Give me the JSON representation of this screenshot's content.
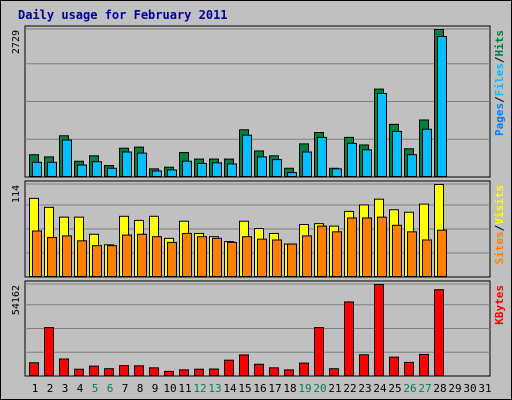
{
  "chart_data": {
    "type": "bar",
    "title": "Daily usage for February 2011",
    "days": [
      "1",
      "2",
      "3",
      "4",
      "5",
      "6",
      "7",
      "8",
      "9",
      "10",
      "11",
      "12",
      "13",
      "14",
      "15",
      "16",
      "17",
      "18",
      "19",
      "20",
      "21",
      "22",
      "23",
      "24",
      "25",
      "26",
      "27",
      "28",
      "29",
      "30",
      "31"
    ],
    "weekend_days": [
      "5",
      "6",
      "12",
      "13",
      "19",
      "20",
      "26",
      "27"
    ],
    "panels": [
      {
        "id": "hits_panel",
        "max_label": "2729",
        "ymax": 2729,
        "right_labels": [
          "Pages",
          "Files",
          "Hits"
        ],
        "series": [
          {
            "name": "Hits",
            "color": "#008040",
            "values": [
              420,
              380,
              770,
              300,
              400,
              220,
              540,
              560,
              160,
              190,
              460,
              340,
              340,
              340,
              880,
              490,
              400,
              170,
              620,
              830,
              170,
              740,
              600,
              1630,
              980,
              530,
              1060,
              2729,
              0,
              0,
              0
            ]
          },
          {
            "name": "Files",
            "color": "#00c0ff",
            "values": [
              280,
              280,
              690,
              230,
              290,
              170,
              470,
              450,
              120,
              140,
              300,
              260,
              270,
              250,
              780,
              380,
              330,
              90,
              470,
              740,
              160,
              630,
              510,
              1550,
              850,
              420,
              890,
              2600,
              0,
              0,
              0
            ]
          },
          {
            "name": "Pages",
            "color": "#0080ff",
            "values": []
          }
        ]
      },
      {
        "id": "visits_panel",
        "max_label": "114",
        "ymax": 114,
        "right_labels": [
          "Sites",
          "Visits"
        ],
        "series": [
          {
            "name": "Visits",
            "color": "#ffff00",
            "values": [
              97,
              86,
              74,
              74,
              53,
              40,
              75,
              70,
              75,
              48,
              69,
              54,
              50,
              44,
              69,
              60,
              54,
              41,
              65,
              66,
              63,
              81,
              89,
              96,
              83,
              80,
              90,
              114,
              0,
              0,
              0
            ]
          },
          {
            "name": "Sites",
            "color": "#ff8000",
            "values": [
              57,
              49,
              51,
              45,
              39,
              39,
              52,
              53,
              50,
              43,
              54,
              50,
              48,
              43,
              50,
              47,
              46,
              41,
              51,
              63,
              56,
              73,
              73,
              74,
              64,
              56,
              46,
              58,
              0,
              0,
              0
            ]
          }
        ]
      },
      {
        "id": "kbytes_panel",
        "max_label": "54162",
        "ymax": 54162,
        "right_labels": [
          "KBytes"
        ],
        "series": [
          {
            "name": "KBytes",
            "color": "#ff0000",
            "values": [
              8100,
              28800,
              10300,
              4300,
              6100,
              4600,
              6400,
              6300,
              5100,
              3000,
              3900,
              4300,
              4400,
              9600,
              12700,
              7200,
              5100,
              3900,
              7900,
              28800,
              4600,
              43900,
              12800,
              54162,
              11400,
              8300,
              13000,
              51100,
              0,
              0,
              0
            ]
          }
        ]
      }
    ]
  }
}
